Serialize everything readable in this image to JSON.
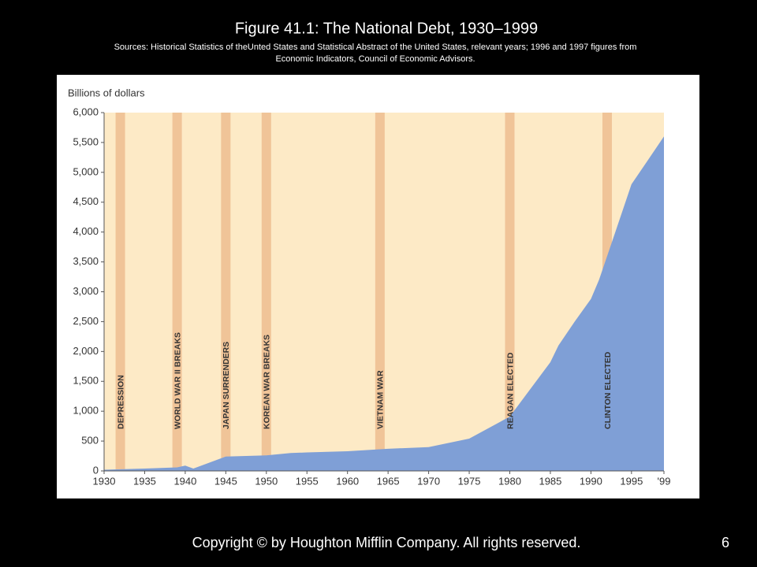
{
  "title": "Figure 41.1: The National Debt, 1930–1999",
  "sources": [
    "Sources: Historical Statistics of theUnted States and Statistical Abstract of the United States, relevant years; 1996 and 1997 figures from",
    "Economic Indicators, Council of Economic Advisors."
  ],
  "footer": "Copyright © by Houghton Mifflin Company. All rights reserved.",
  "page_number": "6",
  "chart_data": {
    "type": "area",
    "y_label": "Billions of dollars",
    "x": [
      1930,
      1935,
      1939,
      1940,
      1941,
      1943,
      1945,
      1950,
      1953,
      1955,
      1960,
      1965,
      1970,
      1975,
      1980,
      1985,
      1986,
      1988,
      1990,
      1991,
      1992,
      1993,
      1994,
      1995,
      1997,
      1998,
      1999
    ],
    "values": [
      20,
      40,
      60,
      90,
      40,
      140,
      240,
      260,
      300,
      310,
      330,
      370,
      400,
      540,
      910,
      1820,
      2100,
      2500,
      2880,
      3200,
      3600,
      4000,
      4400,
      4800,
      5200,
      5400,
      5600
    ],
    "color": "#7f9fd6",
    "background": "#fdeac6",
    "band_color": "#f0c498",
    "annotations": [
      {
        "label": "DEPRESSION",
        "x": 1932
      },
      {
        "label": "WORLD WAR II BREAKS",
        "x": 1939
      },
      {
        "label": "JAPAN SURRENDERS",
        "x": 1945
      },
      {
        "label": "KOREAN WAR BREAKS",
        "x": 1950
      },
      {
        "label": "VIETNAM WAR",
        "x": 1964
      },
      {
        "label": "REAGAN ELECTED",
        "x": 1980
      },
      {
        "label": "CLINTON ELECTED",
        "x": 1992
      }
    ],
    "xlim": [
      1930,
      1999
    ],
    "xticks": [
      1930,
      1935,
      1940,
      1945,
      1950,
      1955,
      1960,
      1965,
      1970,
      1975,
      1980,
      1985,
      1990,
      1995,
      {
        "value": 1999,
        "label": "'99"
      }
    ],
    "ylim": [
      0,
      6000
    ],
    "yticks": [
      0,
      500,
      {
        "value": 1000,
        "label": "1,000"
      },
      {
        "value": 1500,
        "label": "1,500"
      },
      {
        "value": 2000,
        "label": "2,000"
      },
      {
        "value": 2500,
        "label": "2,500"
      },
      {
        "value": 3000,
        "label": "3,000"
      },
      {
        "value": 3500,
        "label": "3,500"
      },
      {
        "value": 4000,
        "label": "4,000"
      },
      {
        "value": 4500,
        "label": "4,500"
      },
      {
        "value": 5000,
        "label": "5,000"
      },
      {
        "value": 5500,
        "label": "5,500"
      },
      {
        "value": 6000,
        "label": "6,000"
      }
    ]
  }
}
